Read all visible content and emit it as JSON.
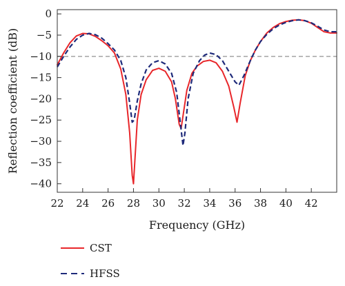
{
  "chart_data": {
    "type": "line",
    "title": "",
    "xlabel": "Frequency (GHz)",
    "ylabel": "Reflection coefficient (dB)",
    "xlim": [
      22,
      44
    ],
    "ylim": [
      -42,
      1
    ],
    "xticks": [
      22,
      24,
      26,
      28,
      30,
      32,
      34,
      36,
      38,
      40,
      42
    ],
    "yticks": [
      0,
      -5,
      -10,
      -15,
      -20,
      -25,
      -30,
      -35,
      -40
    ],
    "grid": false,
    "reference_line": {
      "y": -10,
      "style": "dashed",
      "color": "#aaaaaa"
    },
    "legend_position": "bottom-left-outside",
    "series": [
      {
        "name": "CST",
        "color": "#e8262a",
        "dash": "solid",
        "points": [
          [
            22.0,
            -12.0
          ],
          [
            22.5,
            -9.2
          ],
          [
            23.0,
            -6.8
          ],
          [
            23.5,
            -5.2
          ],
          [
            24.0,
            -4.6
          ],
          [
            24.5,
            -4.7
          ],
          [
            25.0,
            -5.3
          ],
          [
            25.5,
            -6.3
          ],
          [
            26.0,
            -7.5
          ],
          [
            26.5,
            -9.2
          ],
          [
            27.0,
            -13.0
          ],
          [
            27.4,
            -19.0
          ],
          [
            27.7,
            -28.0
          ],
          [
            27.9,
            -38.0
          ],
          [
            28.0,
            -40.0
          ],
          [
            28.1,
            -35.0
          ],
          [
            28.3,
            -25.0
          ],
          [
            28.6,
            -19.0
          ],
          [
            29.0,
            -15.5
          ],
          [
            29.5,
            -13.3
          ],
          [
            30.0,
            -12.8
          ],
          [
            30.5,
            -13.5
          ],
          [
            31.0,
            -16.0
          ],
          [
            31.3,
            -20.0
          ],
          [
            31.6,
            -26.0
          ],
          [
            31.75,
            -27.0
          ],
          [
            31.9,
            -24.0
          ],
          [
            32.2,
            -18.0
          ],
          [
            32.6,
            -14.0
          ],
          [
            33.0,
            -12.3
          ],
          [
            33.5,
            -11.2
          ],
          [
            34.0,
            -10.9
          ],
          [
            34.5,
            -11.5
          ],
          [
            35.0,
            -13.5
          ],
          [
            35.5,
            -17.0
          ],
          [
            35.9,
            -22.0
          ],
          [
            36.15,
            -25.5
          ],
          [
            36.4,
            -21.0
          ],
          [
            36.8,
            -14.5
          ],
          [
            37.2,
            -11.0
          ],
          [
            37.6,
            -8.5
          ],
          [
            38.0,
            -6.5
          ],
          [
            38.5,
            -4.5
          ],
          [
            39.0,
            -3.2
          ],
          [
            39.5,
            -2.3
          ],
          [
            40.0,
            -1.8
          ],
          [
            40.5,
            -1.5
          ],
          [
            41.0,
            -1.4
          ],
          [
            41.5,
            -1.6
          ],
          [
            42.0,
            -2.2
          ],
          [
            42.5,
            -3.2
          ],
          [
            43.0,
            -4.2
          ],
          [
            43.5,
            -4.5
          ],
          [
            44.0,
            -4.5
          ]
        ]
      },
      {
        "name": "HFSS",
        "color": "#1e2a7a",
        "dash": "dashed",
        "points": [
          [
            22.0,
            -12.5
          ],
          [
            22.5,
            -10.0
          ],
          [
            23.0,
            -7.8
          ],
          [
            23.5,
            -6.0
          ],
          [
            24.0,
            -5.0
          ],
          [
            24.5,
            -4.6
          ],
          [
            25.0,
            -4.9
          ],
          [
            25.5,
            -5.7
          ],
          [
            26.0,
            -7.0
          ],
          [
            26.5,
            -8.5
          ],
          [
            27.0,
            -11.0
          ],
          [
            27.4,
            -15.0
          ],
          [
            27.7,
            -21.0
          ],
          [
            27.9,
            -25.5
          ],
          [
            28.05,
            -25.0
          ],
          [
            28.3,
            -20.5
          ],
          [
            28.6,
            -16.5
          ],
          [
            29.0,
            -13.2
          ],
          [
            29.5,
            -11.5
          ],
          [
            30.0,
            -11.0
          ],
          [
            30.5,
            -11.8
          ],
          [
            31.0,
            -14.0
          ],
          [
            31.4,
            -18.5
          ],
          [
            31.7,
            -26.0
          ],
          [
            31.9,
            -31.0
          ],
          [
            32.05,
            -28.0
          ],
          [
            32.3,
            -20.0
          ],
          [
            32.7,
            -14.0
          ],
          [
            33.2,
            -11.0
          ],
          [
            33.6,
            -9.7
          ],
          [
            34.0,
            -9.2
          ],
          [
            34.5,
            -9.6
          ],
          [
            35.0,
            -11.0
          ],
          [
            35.5,
            -13.5
          ],
          [
            36.0,
            -16.0
          ],
          [
            36.3,
            -16.8
          ],
          [
            36.7,
            -14.5
          ],
          [
            37.2,
            -11.0
          ],
          [
            37.6,
            -8.5
          ],
          [
            38.0,
            -6.5
          ],
          [
            38.5,
            -4.8
          ],
          [
            39.0,
            -3.5
          ],
          [
            39.5,
            -2.6
          ],
          [
            40.0,
            -2.0
          ],
          [
            40.5,
            -1.6
          ],
          [
            41.0,
            -1.4
          ],
          [
            41.5,
            -1.6
          ],
          [
            42.0,
            -2.1
          ],
          [
            42.5,
            -2.9
          ],
          [
            43.0,
            -3.8
          ],
          [
            43.5,
            -4.2
          ],
          [
            44.0,
            -4.2
          ]
        ]
      }
    ]
  }
}
